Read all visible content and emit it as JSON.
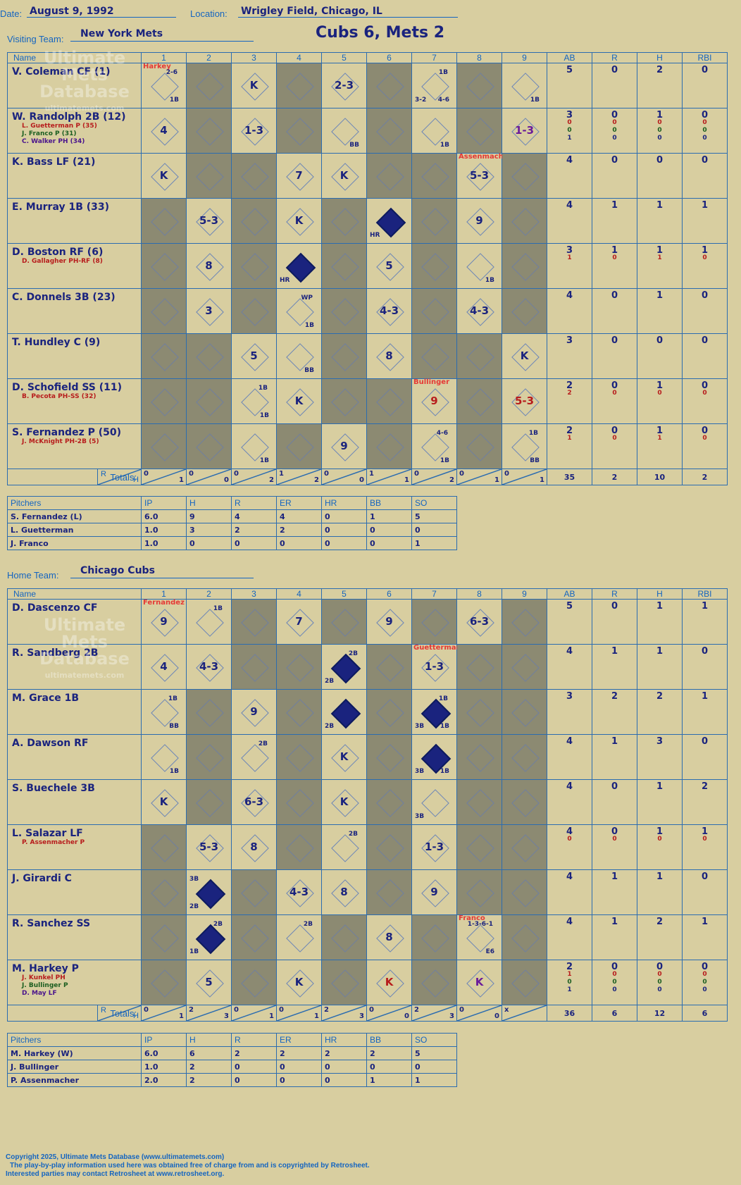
{
  "header": {
    "date_label": "Date:",
    "date": "August 9, 1992",
    "location_label": "Location:",
    "location": "Wrigley Field, Chicago, IL",
    "title": "Cubs 6, Mets 2"
  },
  "visiting": {
    "label": "Visiting Team:",
    "team": "New York Mets",
    "columns": [
      "Name",
      "1",
      "2",
      "3",
      "4",
      "5",
      "6",
      "7",
      "8",
      "9",
      "AB",
      "R",
      "H",
      "RBI"
    ],
    "totals_label": "Totals:",
    "rows": [
      {
        "name": "V. Coleman CF (1)",
        "subs": [],
        "ab": [
          "5"
        ],
        "r": [
          "0"
        ],
        "h": [
          "2"
        ],
        "rbi": [
          "0"
        ],
        "cells": [
          {
            "res": "",
            "pc": "Harkey",
            "note": "2-6",
            "note2": "1B"
          },
          {
            "g": true
          },
          {
            "res": "K"
          },
          {
            "g": true
          },
          {
            "res": "2-3"
          },
          {
            "g": true
          },
          {
            "res": "",
            "note": "1B",
            "note2": "4-6",
            "note3": "3-2"
          },
          {
            "g": true
          },
          {
            "res": "",
            "note2": "1B"
          }
        ]
      },
      {
        "name": "W. Randolph 2B (12)",
        "subs": [
          {
            "t": "L. Guetterman P (35)",
            "c": "red"
          },
          {
            "t": "J. Franco P (31)",
            "c": "green"
          },
          {
            "t": "C. Walker PH (34)",
            "c": "purple"
          }
        ],
        "ab": [
          "3",
          "0",
          "0",
          "1"
        ],
        "r": [
          "0",
          "0",
          "0",
          "0"
        ],
        "h": [
          "1",
          "0",
          "0",
          "0"
        ],
        "rbi": [
          "0",
          "0",
          "0",
          "0"
        ],
        "cells": [
          {
            "res": "4"
          },
          {
            "g": true
          },
          {
            "res": "1-3"
          },
          {
            "g": true
          },
          {
            "res": "",
            "note2": "BB"
          },
          {
            "g": true
          },
          {
            "res": "",
            "note2": "1B"
          },
          {
            "g": true
          },
          {
            "res": "1-3",
            "cls": "purple"
          }
        ]
      },
      {
        "name": "K. Bass LF (21)",
        "subs": [],
        "ab": [
          "4"
        ],
        "r": [
          "0"
        ],
        "h": [
          "0"
        ],
        "rbi": [
          "0"
        ],
        "cells": [
          {
            "res": "K"
          },
          {
            "g": true
          },
          {
            "g": true
          },
          {
            "res": "7"
          },
          {
            "res": "K"
          },
          {
            "g": true
          },
          {
            "g": true
          },
          {
            "res": "5-3",
            "pc": "Assenmacher"
          },
          {
            "g": true
          }
        ]
      },
      {
        "name": "E. Murray 1B (33)",
        "subs": [],
        "ab": [
          "4"
        ],
        "r": [
          "1"
        ],
        "h": [
          "1"
        ],
        "rbi": [
          "1"
        ],
        "cells": [
          {
            "g": true
          },
          {
            "res": "5-3"
          },
          {
            "g": true
          },
          {
            "res": "K"
          },
          {
            "g": true
          },
          {
            "res": "",
            "hr": true,
            "note3": "HR"
          },
          {
            "g": true
          },
          {
            "res": "9"
          },
          {
            "g": true
          }
        ]
      },
      {
        "name": "D. Boston RF (6)",
        "subs": [
          {
            "t": "D. Gallagher PH-RF (8)",
            "c": "red"
          }
        ],
        "ab": [
          "3",
          "1"
        ],
        "r": [
          "1",
          "0"
        ],
        "h": [
          "1",
          "1"
        ],
        "rbi": [
          "1",
          "0"
        ],
        "cells": [
          {
            "g": true
          },
          {
            "res": "8"
          },
          {
            "g": true
          },
          {
            "res": "",
            "hr": true,
            "note3": "HR"
          },
          {
            "g": true
          },
          {
            "res": "5"
          },
          {
            "g": true
          },
          {
            "res": "",
            "note2": "1B"
          },
          {
            "g": true
          }
        ]
      },
      {
        "name": "C. Donnels 3B (23)",
        "subs": [],
        "ab": [
          "4"
        ],
        "r": [
          "0"
        ],
        "h": [
          "1"
        ],
        "rbi": [
          "0"
        ],
        "cells": [
          {
            "g": true
          },
          {
            "res": "3"
          },
          {
            "g": true
          },
          {
            "res": "",
            "note": "WP",
            "note2": "1B"
          },
          {
            "g": true
          },
          {
            "res": "4-3"
          },
          {
            "g": true
          },
          {
            "res": "4-3"
          },
          {
            "g": true
          }
        ]
      },
      {
        "name": "T. Hundley C (9)",
        "subs": [],
        "ab": [
          "3"
        ],
        "r": [
          "0"
        ],
        "h": [
          "0"
        ],
        "rbi": [
          "0"
        ],
        "cells": [
          {
            "g": true
          },
          {
            "g": true
          },
          {
            "res": "5"
          },
          {
            "res": "",
            "note2": "BB"
          },
          {
            "g": true
          },
          {
            "res": "8"
          },
          {
            "g": true
          },
          {
            "g": true
          },
          {
            "res": "K"
          }
        ]
      },
      {
        "name": "D. Schofield SS (11)",
        "subs": [
          {
            "t": "B. Pecota PH-SS (32)",
            "c": "red"
          }
        ],
        "ab": [
          "2",
          "2"
        ],
        "r": [
          "0",
          "0"
        ],
        "h": [
          "1",
          "0"
        ],
        "rbi": [
          "0",
          "0"
        ],
        "cells": [
          {
            "g": true
          },
          {
            "g": true
          },
          {
            "res": "",
            "note": "1B",
            "note2": "1B"
          },
          {
            "res": "K"
          },
          {
            "g": true
          },
          {
            "g": true
          },
          {
            "res": "9",
            "pc": "Bullinger",
            "cls": "red"
          },
          {
            "g": true
          },
          {
            "res": "5-3",
            "cls": "red"
          }
        ]
      },
      {
        "name": "S. Fernandez P (50)",
        "subs": [
          {
            "t": "J. McKnight PH-2B (5)",
            "c": "red"
          }
        ],
        "ab": [
          "2",
          "1"
        ],
        "r": [
          "0",
          "0"
        ],
        "h": [
          "1",
          "1"
        ],
        "rbi": [
          "0",
          "0"
        ],
        "cells": [
          {
            "g": true
          },
          {
            "g": true
          },
          {
            "res": "",
            "note2": "1B"
          },
          {
            "g": true
          },
          {
            "res": "9"
          },
          {
            "g": true
          },
          {
            "res": "",
            "note": "4-6",
            "note2": "1B"
          },
          {
            "g": true
          },
          {
            "res": "",
            "note": "1B",
            "note2": "BB"
          }
        ]
      }
    ],
    "totals": [
      [
        "0",
        "1"
      ],
      [
        "0",
        "0"
      ],
      [
        "0",
        "2"
      ],
      [
        "1",
        "2"
      ],
      [
        "0",
        "0"
      ],
      [
        "1",
        "1"
      ],
      [
        "0",
        "2"
      ],
      [
        "0",
        "1"
      ],
      [
        "0",
        "1"
      ]
    ],
    "total_stats": [
      "35",
      "2",
      "10",
      "2"
    ],
    "pitchers_cols": [
      "Pitchers",
      "IP",
      "H",
      "R",
      "ER",
      "HR",
      "BB",
      "SO"
    ],
    "pitchers": [
      [
        "S. Fernandez (L)",
        "6.0",
        "9",
        "4",
        "4",
        "0",
        "1",
        "5"
      ],
      [
        "L. Guetterman",
        "1.0",
        "3",
        "2",
        "2",
        "0",
        "0",
        "0"
      ],
      [
        "J. Franco",
        "1.0",
        "0",
        "0",
        "0",
        "0",
        "0",
        "1"
      ]
    ]
  },
  "home": {
    "label": "Home Team:",
    "team": "Chicago Cubs",
    "rows": [
      {
        "name": "D. Dascenzo CF",
        "subs": [],
        "ab": [
          "5"
        ],
        "r": [
          "0"
        ],
        "h": [
          "1"
        ],
        "rbi": [
          "1"
        ],
        "cells": [
          {
            "res": "9",
            "pc": "Fernandez"
          },
          {
            "res": "",
            "note": "1B"
          },
          {
            "g": true
          },
          {
            "res": "7"
          },
          {
            "g": true
          },
          {
            "res": "9"
          },
          {
            "g": true
          },
          {
            "res": "6-3"
          },
          {
            "g": true
          }
        ]
      },
      {
        "name": "R. Sandberg 2B",
        "subs": [],
        "ab": [
          "4"
        ],
        "r": [
          "1"
        ],
        "h": [
          "1"
        ],
        "rbi": [
          "0"
        ],
        "cells": [
          {
            "res": "4"
          },
          {
            "res": "4-3"
          },
          {
            "g": true
          },
          {
            "g": true
          },
          {
            "res": "",
            "hr": true,
            "note": "2B",
            "note3": "2B"
          },
          {
            "g": true
          },
          {
            "res": "1-3",
            "pc": "Guetterman"
          },
          {
            "g": true
          },
          {
            "g": true
          }
        ]
      },
      {
        "name": "M. Grace 1B",
        "subs": [],
        "ab": [
          "3"
        ],
        "r": [
          "2"
        ],
        "h": [
          "2"
        ],
        "rbi": [
          "1"
        ],
        "cells": [
          {
            "res": "",
            "note": "1B",
            "note2": "BB"
          },
          {
            "g": true
          },
          {
            "res": "9"
          },
          {
            "g": true
          },
          {
            "res": "",
            "hr": true,
            "note3": "2B"
          },
          {
            "g": true
          },
          {
            "res": "",
            "hr": true,
            "note": "1B",
            "note2": "1B",
            "note3": "3B"
          },
          {
            "g": true
          },
          {
            "g": true
          }
        ]
      },
      {
        "name": "A. Dawson RF",
        "subs": [],
        "ab": [
          "4"
        ],
        "r": [
          "1"
        ],
        "h": [
          "3"
        ],
        "rbi": [
          "0"
        ],
        "cells": [
          {
            "res": "",
            "note2": "1B"
          },
          {
            "g": true
          },
          {
            "res": "",
            "note": "2B"
          },
          {
            "g": true
          },
          {
            "res": "K"
          },
          {
            "g": true
          },
          {
            "res": "",
            "hr": true,
            "note2": "1B",
            "note3": "3B"
          },
          {
            "g": true
          },
          {
            "g": true
          }
        ]
      },
      {
        "name": "S. Buechele 3B",
        "subs": [],
        "ab": [
          "4"
        ],
        "r": [
          "0"
        ],
        "h": [
          "1"
        ],
        "rbi": [
          "2"
        ],
        "cells": [
          {
            "res": "K"
          },
          {
            "g": true
          },
          {
            "res": "6-3"
          },
          {
            "g": true
          },
          {
            "res": "K"
          },
          {
            "g": true
          },
          {
            "res": "",
            "note3": "3B"
          },
          {
            "g": true
          },
          {
            "g": true
          }
        ]
      },
      {
        "name": "L. Salazar LF",
        "subs": [
          {
            "t": "P. Assenmacher P",
            "c": "red"
          }
        ],
        "ab": [
          "4",
          "0"
        ],
        "r": [
          "0",
          "0"
        ],
        "h": [
          "1",
          "0"
        ],
        "rbi": [
          "1",
          "0"
        ],
        "cells": [
          {
            "g": true
          },
          {
            "res": "5-3"
          },
          {
            "res": "8"
          },
          {
            "g": true
          },
          {
            "res": "",
            "note": "2B"
          },
          {
            "g": true
          },
          {
            "res": "1-3"
          },
          {
            "g": true
          },
          {
            "g": true
          }
        ]
      },
      {
        "name": "J. Girardi C",
        "subs": [],
        "ab": [
          "4"
        ],
        "r": [
          "1"
        ],
        "h": [
          "1"
        ],
        "rbi": [
          "0"
        ],
        "cells": [
          {
            "g": true
          },
          {
            "res": "",
            "hr": true,
            "note3": "2B",
            "note4": "3B"
          },
          {
            "g": true
          },
          {
            "res": "4-3"
          },
          {
            "res": "8"
          },
          {
            "g": true
          },
          {
            "res": "9"
          },
          {
            "g": true
          },
          {
            "g": true
          }
        ]
      },
      {
        "name": "R. Sanchez SS",
        "subs": [],
        "ab": [
          "4"
        ],
        "r": [
          "1"
        ],
        "h": [
          "2"
        ],
        "rbi": [
          "1"
        ],
        "cells": [
          {
            "g": true
          },
          {
            "res": "",
            "hr": true,
            "note": "2B",
            "note3": "1B"
          },
          {
            "g": true
          },
          {
            "res": "",
            "note": "2B"
          },
          {
            "g": true
          },
          {
            "res": "8"
          },
          {
            "g": true
          },
          {
            "res": "",
            "pc": "Franco",
            "note": "1-3-6-1",
            "note2": "E6"
          },
          {
            "g": true
          }
        ]
      },
      {
        "name": "M. Harkey P",
        "subs": [
          {
            "t": "J. Kunkel PH",
            "c": "red"
          },
          {
            "t": "J. Bullinger P",
            "c": "green"
          },
          {
            "t": "D. May LF",
            "c": "purple"
          }
        ],
        "ab": [
          "2",
          "1",
          "0",
          "1"
        ],
        "r": [
          "0",
          "0",
          "0",
          "0"
        ],
        "h": [
          "0",
          "0",
          "0",
          "0"
        ],
        "rbi": [
          "0",
          "0",
          "0",
          "0"
        ],
        "cells": [
          {
            "g": true
          },
          {
            "res": "5"
          },
          {
            "g": true
          },
          {
            "res": "K"
          },
          {
            "g": true
          },
          {
            "res": "K",
            "cls": "red"
          },
          {
            "g": true
          },
          {
            "res": "K",
            "cls": "purple"
          },
          {
            "g": true
          }
        ]
      }
    ],
    "totals": [
      [
        "0",
        "1"
      ],
      [
        "2",
        "3"
      ],
      [
        "0",
        "1"
      ],
      [
        "0",
        "1"
      ],
      [
        "2",
        "3"
      ],
      [
        "0",
        "0"
      ],
      [
        "2",
        "3"
      ],
      [
        "0",
        "0"
      ],
      [
        "x",
        ""
      ]
    ],
    "total_stats": [
      "36",
      "6",
      "12",
      "6"
    ],
    "pitchers": [
      [
        "M. Harkey (W)",
        "6.0",
        "6",
        "2",
        "2",
        "2",
        "2",
        "5"
      ],
      [
        "J. Bullinger",
        "1.0",
        "2",
        "0",
        "0",
        "0",
        "0",
        "0"
      ],
      [
        "P. Assenmacher",
        "2.0",
        "2",
        "0",
        "0",
        "0",
        "1",
        "1"
      ]
    ]
  },
  "watermark": {
    "line1": "Ultimate",
    "line2": "Mets",
    "line3": "Database",
    "line4": "ultimatemets.com"
  },
  "footer": {
    "line1": "Copyright 2025, Ultimate Mets Database (www.ultimatemets.com)",
    "line2": "The play-by-play information used here was obtained free of charge from and is copyrighted by Retrosheet.",
    "line3": "Interested parties may contact Retrosheet at www.retrosheet.org."
  }
}
